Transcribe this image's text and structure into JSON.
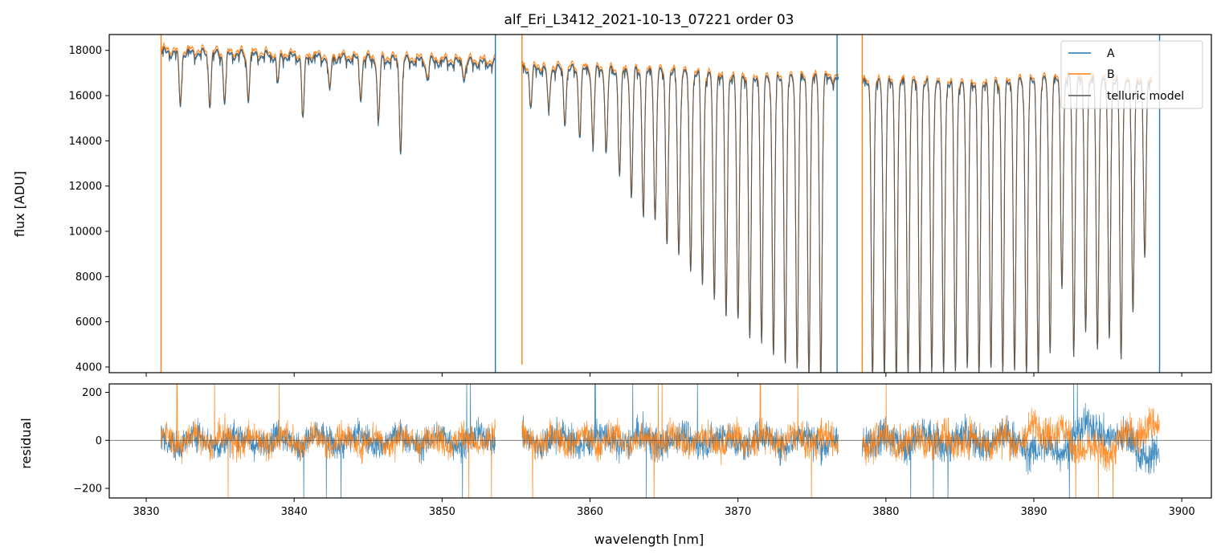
{
  "chart_data": [
    {
      "panel": "spectrum",
      "type": "line",
      "title": "alf_Eri_L3412_2021-10-13_07221  order 03",
      "xlabel": "",
      "ylabel": "flux [ADU]",
      "xlim": [
        3827.5,
        3902.0
      ],
      "ylim": [
        3750,
        18700
      ],
      "yticks": [
        4000,
        6000,
        8000,
        10000,
        12000,
        14000,
        16000,
        18000
      ],
      "ytick_labels": [
        "4000",
        "6000",
        "8000",
        "10000",
        "12000",
        "14000",
        "16000",
        "18000"
      ],
      "xticks": [
        3830,
        3840,
        3850,
        3860,
        3870,
        3880,
        3890,
        3900
      ],
      "grid": false,
      "legend": {
        "position": "top-right",
        "entries": [
          "A",
          "B",
          "telluric model"
        ]
      },
      "segments": [
        {
          "x_start": 3831.0,
          "x_end": 3853.6,
          "continuum_start": 18000,
          "continuum_end": 17500
        },
        {
          "x_start": 3855.4,
          "x_end": 3876.8,
          "continuum_start": 17300,
          "continuum_end": 16800
        },
        {
          "x_start": 3878.4,
          "x_end": 3898.0,
          "continuum_start": 16600,
          "continuum_end": 16800
        }
      ],
      "absorption_lines": [
        {
          "x": 3832.3,
          "depth": 2300
        },
        {
          "x": 3834.3,
          "depth": 2200
        },
        {
          "x": 3835.3,
          "depth": 2100
        },
        {
          "x": 3836.9,
          "depth": 1900
        },
        {
          "x": 3838.9,
          "depth": 1200
        },
        {
          "x": 3840.6,
          "depth": 2700
        },
        {
          "x": 3842.4,
          "depth": 1600
        },
        {
          "x": 3844.5,
          "depth": 1700
        },
        {
          "x": 3845.7,
          "depth": 2800
        },
        {
          "x": 3847.2,
          "depth": 4000
        },
        {
          "x": 3849.0,
          "depth": 800
        },
        {
          "x": 3851.5,
          "depth": 700
        },
        {
          "x": 3856.0,
          "depth": 1700
        },
        {
          "x": 3857.2,
          "depth": 1900
        },
        {
          "x": 3858.3,
          "depth": 2300
        },
        {
          "x": 3859.3,
          "depth": 2800
        },
        {
          "x": 3860.2,
          "depth": 3200
        },
        {
          "x": 3861.1,
          "depth": 3600
        },
        {
          "x": 3862.0,
          "depth": 4600
        },
        {
          "x": 3862.8,
          "depth": 5500
        },
        {
          "x": 3863.6,
          "depth": 6100
        },
        {
          "x": 3864.4,
          "depth": 6500
        },
        {
          "x": 3865.2,
          "depth": 7400
        },
        {
          "x": 3866.0,
          "depth": 8000
        },
        {
          "x": 3866.8,
          "depth": 8700
        },
        {
          "x": 3867.6,
          "depth": 9300
        },
        {
          "x": 3868.4,
          "depth": 10100
        },
        {
          "x": 3869.2,
          "depth": 10600
        },
        {
          "x": 3870.0,
          "depth": 11000
        },
        {
          "x": 3870.8,
          "depth": 11700
        },
        {
          "x": 3871.6,
          "depth": 12000
        },
        {
          "x": 3872.4,
          "depth": 12400
        },
        {
          "x": 3873.2,
          "depth": 12700
        },
        {
          "x": 3874.0,
          "depth": 12900
        },
        {
          "x": 3874.8,
          "depth": 13000
        },
        {
          "x": 3875.6,
          "depth": 13100
        },
        {
          "x": 3879.1,
          "depth": 12900
        },
        {
          "x": 3879.9,
          "depth": 12900
        },
        {
          "x": 3880.7,
          "depth": 12900
        },
        {
          "x": 3881.5,
          "depth": 12900
        },
        {
          "x": 3882.3,
          "depth": 12900
        },
        {
          "x": 3883.1,
          "depth": 12900
        },
        {
          "x": 3883.9,
          "depth": 12900
        },
        {
          "x": 3884.7,
          "depth": 12900
        },
        {
          "x": 3885.5,
          "depth": 12900
        },
        {
          "x": 3886.3,
          "depth": 12900
        },
        {
          "x": 3887.1,
          "depth": 12900
        },
        {
          "x": 3887.9,
          "depth": 12900
        },
        {
          "x": 3888.7,
          "depth": 12900
        },
        {
          "x": 3889.5,
          "depth": 12900
        },
        {
          "x": 3890.3,
          "depth": 12900
        },
        {
          "x": 3891.1,
          "depth": 12000
        },
        {
          "x": 3891.9,
          "depth": 9000
        },
        {
          "x": 3892.7,
          "depth": 12000
        },
        {
          "x": 3893.5,
          "depth": 11000
        },
        {
          "x": 3894.3,
          "depth": 12000
        },
        {
          "x": 3895.1,
          "depth": 11500
        },
        {
          "x": 3895.9,
          "depth": 12500
        },
        {
          "x": 3896.7,
          "depth": 10500
        },
        {
          "x": 3897.5,
          "depth": 8000
        }
      ],
      "edge_spikes": [
        {
          "x": 3831.0,
          "min": 3750,
          "max": 18700
        },
        {
          "x": 3853.6,
          "min": 3750,
          "max": 18700
        },
        {
          "x": 3855.4,
          "min": 4100,
          "max": 18700
        },
        {
          "x": 3876.7,
          "min": 3750,
          "max": 18700
        },
        {
          "x": 3878.4,
          "min": 3750,
          "max": 18700
        },
        {
          "x": 3898.5,
          "min": 3750,
          "max": 18700
        }
      ],
      "series": [
        {
          "name": "A",
          "color": "#1f77b4",
          "continuum_scale": 0.994
        },
        {
          "name": "B",
          "color": "#ff7f0e",
          "continuum_scale": 1.004
        },
        {
          "name": "telluric model",
          "color": "#555555",
          "continuum_scale": 0.997
        }
      ]
    },
    {
      "panel": "residual",
      "type": "line",
      "title": "",
      "xlabel": "wavelength [nm]",
      "ylabel": "residual",
      "xlim": [
        3827.5,
        3902.0
      ],
      "ylim": [
        -240,
        235
      ],
      "yticks": [
        -200,
        0,
        200
      ],
      "ytick_labels": [
        "−200",
        "0",
        "200"
      ],
      "xticks": [
        3830,
        3840,
        3850,
        3860,
        3870,
        3880,
        3890,
        3900
      ],
      "xtick_labels": [
        "3830",
        "3840",
        "3850",
        "3860",
        "3870",
        "3880",
        "3890",
        "3900"
      ],
      "grid": false,
      "zero_line": 0,
      "segments": [
        {
          "x_start": 3831.0,
          "x_end": 3853.6,
          "noise_amplitude": 60
        },
        {
          "x_start": 3855.4,
          "x_end": 3876.8,
          "noise_amplitude": 65
        },
        {
          "x_start": 3878.4,
          "x_end": 3898.5,
          "noise_amplitude": 75
        }
      ],
      "series": [
        {
          "name": "A",
          "color": "#1f77b4"
        },
        {
          "name": "B",
          "color": "#ff7f0e"
        }
      ]
    }
  ]
}
